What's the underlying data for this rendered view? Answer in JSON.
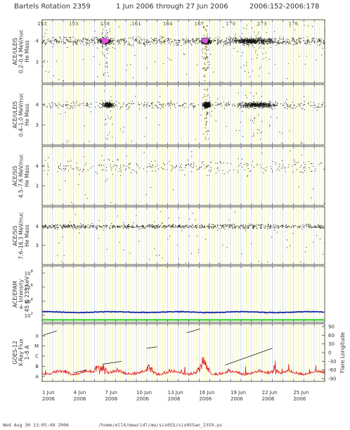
{
  "header": {
    "title": "Bartels Rotation 2359",
    "date_range": "1 Jun 2006 through 27 Jun 2006",
    "doy_range": "2006:152-2006:178"
  },
  "footer": {
    "timestamp": "Wed Aug 30 13:05:48 2006",
    "path": "/home/ell4/mew/idl/mw/sis055/sis055ao_2359.ps"
  },
  "colors": {
    "yellow_grid": "#f3f39a",
    "blue_grid": "#c4d8f0",
    "points": "#111111",
    "highlight": "#dd55dd",
    "epam_electrons": "#1f2aa8",
    "epam_baseline": "#22cc22",
    "xray": "#e02020",
    "flare_line": "#222222"
  },
  "chart_data": {
    "type": "scatter",
    "x_axis": {
      "range_doy": [
        152,
        179
      ],
      "bartels_ticks": [
        "152",
        "155",
        "158",
        "161",
        "164",
        "167",
        "170",
        "173",
        "176"
      ],
      "date_ticks": [
        {
          "day": "1 Jun",
          "year": "2006"
        },
        {
          "day": "4 Jun",
          "year": "2006"
        },
        {
          "day": "7 Jun",
          "year": "2006"
        },
        {
          "day": "10 Jun",
          "year": "2006"
        },
        {
          "day": "13 Jun",
          "year": "2006"
        },
        {
          "day": "16 Jun",
          "year": "2006"
        },
        {
          "day": "19 Jun",
          "year": "2006"
        },
        {
          "day": "22 Jun",
          "year": "2006"
        },
        {
          "day": "25 Jun",
          "year": "2006"
        }
      ]
    },
    "panels": [
      {
        "ylabel": [
          "ACE/ULEIS",
          "0.2–0.4 MeV/nuc",
          "He Mass"
        ],
        "ylim": [
          2,
          5
        ],
        "ticks": [
          "4",
          "3"
        ],
        "tick_vals": [
          4,
          3
        ],
        "density": 0.95,
        "bursts": [
          {
            "center_doy": 158,
            "width": 1.2,
            "extra": 400
          },
          {
            "center_doy": 167.6,
            "width": 0.7,
            "extra": 600
          },
          {
            "center_doy": 172,
            "width": 4,
            "extra": 500
          }
        ],
        "spread": 0.18,
        "highlight_doy": [
          158,
          167.6
        ]
      },
      {
        "ylabel": [
          "ACE/ULEIS",
          "0.4–1.0 MeV/nuc",
          "He Mass"
        ],
        "ylim": [
          2,
          5
        ],
        "ticks": [
          "4",
          "3"
        ],
        "tick_vals": [
          4,
          3
        ],
        "density": 0.45,
        "bursts": [
          {
            "center_doy": 158.3,
            "width": 1.0,
            "extra": 250
          },
          {
            "center_doy": 167.7,
            "width": 0.6,
            "extra": 450
          },
          {
            "center_doy": 172.5,
            "width": 3.5,
            "extra": 400
          }
        ],
        "spread": 0.18,
        "highlight_doy": []
      },
      {
        "ylabel": [
          "ACE/SIS",
          "4.5–7.6 MeV/nuc",
          "He Mass"
        ],
        "ylim": [
          2,
          5
        ],
        "ticks": [
          "4",
          "3"
        ],
        "tick_vals": [
          4,
          3
        ],
        "density": 0.35,
        "bursts": [],
        "spread": 0.35,
        "highlight_doy": []
      },
      {
        "ylabel": [
          "ACE/SIS",
          "7.6–16.3 MeV/nuc",
          "He Mass"
        ],
        "ylim": [
          2,
          5
        ],
        "ticks": [
          "4",
          "3"
        ],
        "tick_vals": [
          4,
          3
        ],
        "density": 0.9,
        "bursts": [],
        "spread": 0.12,
        "highlight_doy": []
      }
    ],
    "epam": {
      "ylabel": [
        "ACE/EPAM",
        "e- Intensity",
        "45 & 235 keV"
      ],
      "ylim_log": [
        1,
        9
      ],
      "ticks": [
        {
          "base": "10",
          "exp": "8"
        },
        {
          "base": "10",
          "exp": "6"
        },
        {
          "base": "10",
          "exp": "4"
        },
        {
          "base": "10",
          "exp": "2"
        }
      ],
      "tick_vals": [
        8,
        6,
        4,
        2
      ],
      "series": [
        {
          "color_key": "epam_electrons",
          "log_level": 2.45
        },
        {
          "color_key": "epam_baseline",
          "log_level": 1.35
        }
      ]
    },
    "goes": {
      "ylabel": [
        "GOES-12",
        "X-Ray Flux",
        "1–8 A"
      ],
      "left_ticks": [
        "X",
        "M",
        "C",
        "B",
        "A"
      ],
      "left_tick_vals": [
        6,
        5,
        4,
        3,
        2
      ],
      "ylim": [
        1.5,
        7.2
      ],
      "right_label": "Flare Longitude",
      "right_ticks": [
        "90",
        "60",
        "30",
        "0",
        "-30",
        "-60",
        "-90"
      ],
      "right_tick_vals": [
        90,
        60,
        30,
        0,
        -30,
        -60,
        -90
      ],
      "flux_peaks_doy": [
        157.4,
        157.8,
        167.3,
        167.6,
        162.3,
        174.2
      ],
      "longitude_tracks": [
        {
          "doy": [
            152.1,
            153.4
          ],
          "lon": [
            60,
            75
          ]
        },
        {
          "doy": [
            155.0,
            156.2
          ],
          "lon": [
            -70,
            -60
          ]
        },
        {
          "doy": [
            157.8,
            159.6
          ],
          "lon": [
            -40,
            -30
          ]
        },
        {
          "doy": [
            162.0,
            163.0
          ],
          "lon": [
            15,
            20
          ]
        },
        {
          "doy": [
            165.8,
            167.1
          ],
          "lon": [
            68,
            82
          ]
        },
        {
          "doy": [
            169.5,
            174.0
          ],
          "lon": [
            -43,
            15
          ]
        }
      ]
    }
  }
}
